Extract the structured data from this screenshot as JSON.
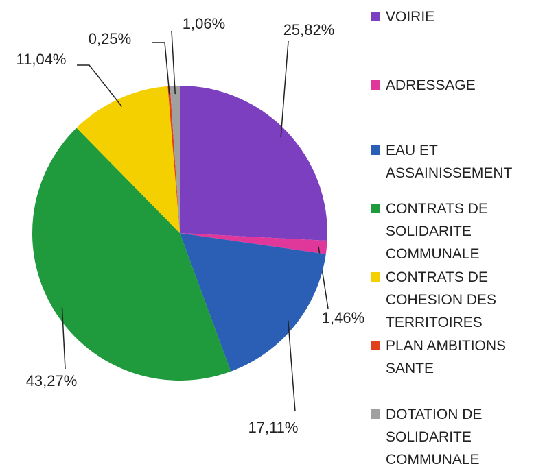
{
  "chart_data": {
    "type": "pie",
    "categories": [
      "VOIRIE",
      "ADRESSAGE",
      "EAU ET ASSAINISSEMENT",
      "CONTRATS DE SOLIDARITE COMMUNALE",
      "CONTRATS DE COHESION DES TERRITOIRES",
      "PLAN AMBITIONS SANTE",
      "DOTATION DE SOLIDARITE COMMUNALE"
    ],
    "values": [
      25.82,
      1.46,
      17.11,
      43.27,
      11.04,
      0.25,
      1.06
    ],
    "value_labels": [
      "25,82%",
      "1,46%",
      "17,11%",
      "43,27%",
      "11,04%",
      "0,25%",
      "1,06%"
    ],
    "colors": [
      "#7b3fbf",
      "#e0389a",
      "#2a5fb5",
      "#1f9a3c",
      "#f5d000",
      "#e0401a",
      "#a0a0a0"
    ]
  }
}
